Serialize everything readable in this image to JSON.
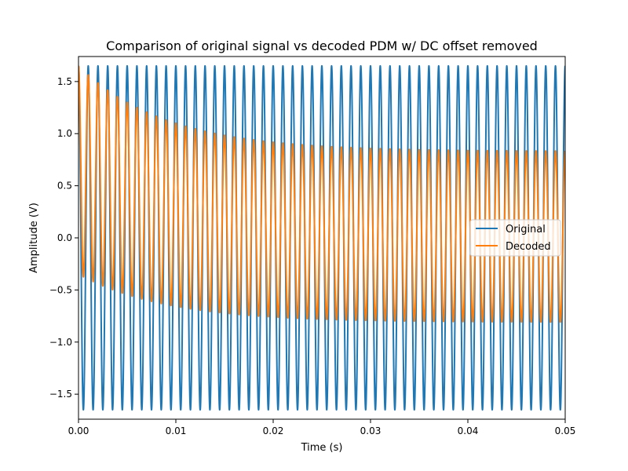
{
  "chart_data": {
    "type": "line",
    "title": "Comparison of original signal vs decoded PDM w/ DC offset removed",
    "xlabel": "Time (s)",
    "ylabel": "Amplitude (V)",
    "xlim": [
      0.0,
      0.05
    ],
    "ylim": [
      -1.74,
      1.74
    ],
    "xticks": [
      0.0,
      0.01,
      0.02,
      0.03,
      0.04,
      0.05
    ],
    "xtick_labels": [
      "0.00",
      "0.01",
      "0.02",
      "0.03",
      "0.04",
      "0.05"
    ],
    "yticks": [
      -1.5,
      -1.0,
      -0.5,
      0.0,
      0.5,
      1.0,
      1.5
    ],
    "ytick_labels": [
      "−1.5",
      "−1.0",
      "−0.5",
      "0.0",
      "0.5",
      "1.0",
      "1.5"
    ],
    "grid": false,
    "legend_position": "center-right",
    "series": [
      {
        "name": "Original",
        "color": "#1f77b4",
        "form": "sine",
        "amplitude": 1.65,
        "frequency_hz": 1000,
        "phase_deg": 90
      },
      {
        "name": "Decoded",
        "color": "#ff7f0e",
        "form": "decaying-offset sine",
        "frequency_hz": 1000,
        "phase_deg": 90,
        "amplitude_start": 1.0,
        "amplitude_end": 0.82,
        "offset_start": 0.65,
        "offset_end": 0.01,
        "time_constant_s": 0.009
      }
    ]
  }
}
